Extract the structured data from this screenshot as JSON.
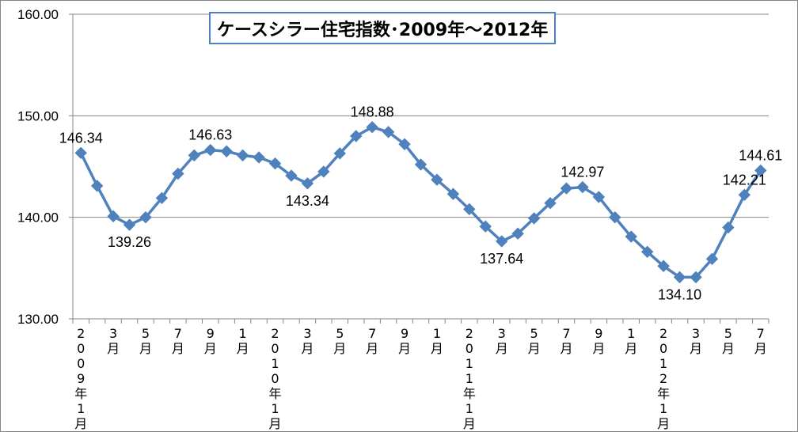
{
  "colors": {
    "series": "#4F81BD",
    "axis": "#868686",
    "grid": "#868686",
    "title_border": "#4F81BD"
  },
  "chart_data": {
    "type": "line",
    "title": "ケースシラー住宅指数･2009年～2012年",
    "xlabel": "",
    "ylabel": "",
    "ylim": [
      130,
      160
    ],
    "yticks": [
      "130.00",
      "140.00",
      "150.00",
      "160.00"
    ],
    "grid": true,
    "legend": "none",
    "marker": "diamond",
    "x_labels": [
      "2009年1月",
      "",
      "3月",
      "",
      "5月",
      "",
      "7月",
      "",
      "9月",
      "",
      "1月",
      "",
      "2010年1月",
      "",
      "3月",
      "",
      "5月",
      "",
      "7月",
      "",
      "9月",
      "",
      "1月",
      "",
      "2011年1月",
      "",
      "3月",
      "",
      "5月",
      "",
      "7月",
      "",
      "9月",
      "",
      "1月",
      "",
      "2012年1月",
      "",
      "3月",
      "",
      "5月",
      "",
      "7月"
    ],
    "series": [
      {
        "values": [
          146.34,
          143.1,
          140.1,
          139.26,
          140.0,
          141.9,
          144.3,
          146.1,
          146.63,
          146.5,
          146.1,
          145.9,
          145.3,
          144.1,
          143.34,
          144.5,
          146.3,
          148.0,
          148.88,
          148.4,
          147.2,
          145.2,
          143.7,
          142.3,
          140.8,
          139.1,
          137.64,
          138.4,
          139.9,
          141.4,
          142.85,
          142.97,
          142.0,
          140.0,
          138.1,
          136.6,
          135.2,
          134.1,
          134.1,
          135.9,
          139.0,
          142.21,
          144.61
        ]
      }
    ],
    "data_labels": [
      {
        "index": 0,
        "text": "146.34",
        "pos": "above"
      },
      {
        "index": 3,
        "text": "139.26",
        "pos": "below"
      },
      {
        "index": 8,
        "text": "146.63",
        "pos": "above"
      },
      {
        "index": 14,
        "text": "143.34",
        "pos": "below"
      },
      {
        "index": 18,
        "text": "148.88",
        "pos": "above"
      },
      {
        "index": 26,
        "text": "137.64",
        "pos": "below"
      },
      {
        "index": 31,
        "text": "142.97",
        "pos": "above"
      },
      {
        "index": 37,
        "text": "134.10",
        "pos": "below"
      },
      {
        "index": 41,
        "text": "142.21",
        "pos": "above"
      },
      {
        "index": 42,
        "text": "144.61",
        "pos": "above"
      }
    ]
  }
}
